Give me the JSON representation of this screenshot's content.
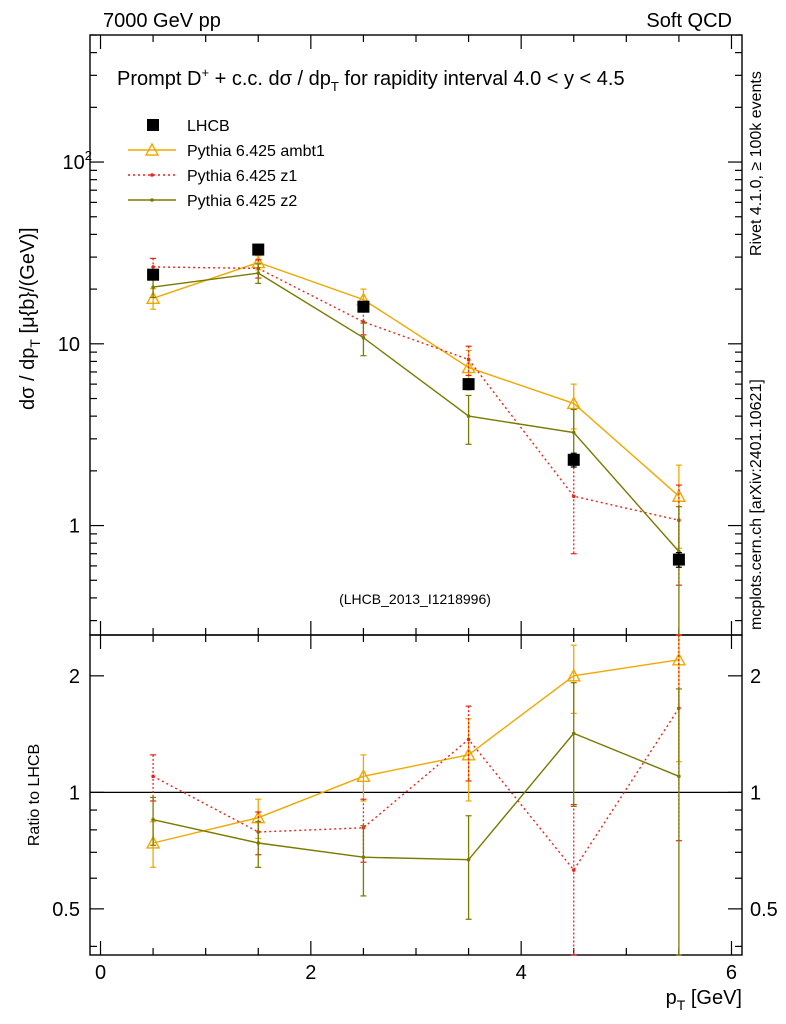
{
  "header": {
    "left": "7000 GeV pp",
    "right": "Soft QCD"
  },
  "side_labels": {
    "top": "Rivet 4.1.0, ≥ 100k events",
    "bottom": "mcplots.cern.ch [arXiv:2401.10621]"
  },
  "colors": {
    "lhcb": "#000000",
    "ambt1": "#f0a800",
    "z1": "#e8241a",
    "z2": "#7a7a00",
    "ref_line": "#000000",
    "watermark": "#999999"
  },
  "chart_data": [
    {
      "type": "line",
      "panel": "main",
      "title_parts": {
        "prefix": "Prompt D",
        "sup": "+",
        "suffix": " + c.c.  dσ / dp",
        "sub": "T",
        "rest": " for rapidity interval 4.0 < y < 4.5"
      },
      "ylabel_parts": {
        "pre": "dσ / dp",
        "sub": "T",
        "post": " [μ{b}/(GeV)]"
      },
      "yscale": "log",
      "ylim": [
        0.25,
        500
      ],
      "xlim": [
        -0.1,
        6.1
      ],
      "yticks": [
        {
          "value": 1,
          "label": "1"
        },
        {
          "value": 10,
          "label": "10"
        },
        {
          "value": 100,
          "label": "10",
          "sup": "2"
        }
      ],
      "watermark": "(LHCB_2013_I1218996)",
      "x": [
        0.5,
        1.5,
        2.5,
        3.5,
        4.5,
        5.5
      ],
      "series": [
        {
          "name": "LHCB",
          "key": "lhcb",
          "style": "square",
          "values": [
            24.0,
            33.0,
            16.0,
            6.0,
            2.3,
            0.65
          ],
          "err": [
            1.5,
            2.0,
            1.0,
            0.4,
            0.2,
            0.06
          ]
        },
        {
          "name": "Pythia 6.425 ambt1",
          "key": "ambt1",
          "style": "triangle",
          "values": [
            17.8,
            28.0,
            17.5,
            7.4,
            4.7,
            1.45
          ],
          "err": [
            2.3,
            2.5,
            2.5,
            1.8,
            1.3,
            0.7
          ]
        },
        {
          "name": "Pythia 6.425 z1",
          "key": "z1",
          "style": "dotted",
          "values": [
            26.5,
            26.0,
            13.2,
            8.2,
            1.45,
            1.07
          ],
          "err": [
            3.0,
            3.0,
            2.0,
            1.5,
            0.75,
            0.6
          ]
        },
        {
          "name": "Pythia 6.425 z2",
          "key": "z2",
          "style": "dot",
          "values": [
            20.5,
            24.5,
            10.8,
            4.0,
            3.25,
            0.72
          ],
          "err": [
            2.5,
            3.0,
            2.2,
            1.2,
            1.1,
            0.55
          ]
        }
      ]
    },
    {
      "type": "line",
      "panel": "ratio",
      "ylabel": "Ratio to LHCB",
      "yscale": "log",
      "ylim": [
        0.38,
        2.55
      ],
      "xlim": [
        -0.1,
        6.1
      ],
      "xlabel_parts": {
        "pre": "p",
        "sub": "T",
        "post": " [GeV]"
      },
      "xticks": [
        {
          "value": 0,
          "label": "0"
        },
        {
          "value": 2,
          "label": "2"
        },
        {
          "value": 4,
          "label": "4"
        },
        {
          "value": 6,
          "label": "6"
        }
      ],
      "yticks": [
        {
          "value": 0.5,
          "label": "0.5"
        },
        {
          "value": 1,
          "label": "1"
        },
        {
          "value": 2,
          "label": "2"
        }
      ],
      "reference": 1,
      "x": [
        0.5,
        1.5,
        2.5,
        3.5,
        4.5,
        5.5
      ],
      "series": [
        {
          "name": "Pythia 6.425 ambt1",
          "key": "ambt1",
          "style": "triangle",
          "values": [
            0.74,
            0.86,
            1.1,
            1.25,
            2.0,
            2.2
          ],
          "err": [
            0.1,
            0.1,
            0.15,
            0.3,
            0.4,
            1.0
          ]
        },
        {
          "name": "Pythia 6.425 z1",
          "key": "z1",
          "style": "dotted",
          "values": [
            1.1,
            0.79,
            0.81,
            1.37,
            0.63,
            1.65
          ],
          "err": [
            0.15,
            0.1,
            0.15,
            0.3,
            0.3,
            0.9
          ]
        },
        {
          "name": "Pythia 6.425 z2",
          "key": "z2",
          "style": "dot",
          "values": [
            0.85,
            0.74,
            0.68,
            0.67,
            1.42,
            1.1
          ],
          "err": [
            0.12,
            0.1,
            0.14,
            0.2,
            0.5,
            0.75
          ]
        }
      ]
    }
  ]
}
